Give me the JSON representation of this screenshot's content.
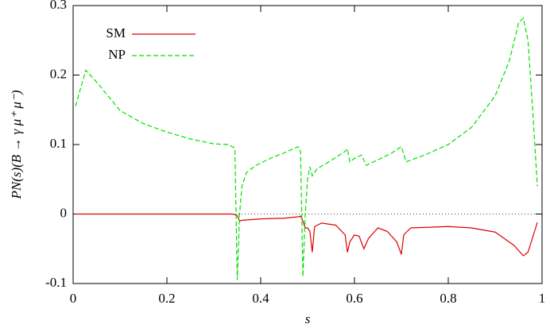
{
  "chart_data": {
    "type": "line",
    "x_label": "s",
    "y_label": "PN(s)(B → γ μ⁺ μ⁻)",
    "xlim": [
      0,
      1
    ],
    "xticks": [
      0,
      0.2,
      0.4,
      0.6,
      0.8,
      1
    ],
    "ylim": [
      -0.1,
      0.3
    ],
    "yticks": [
      -0.1,
      0,
      0.1,
      0.2,
      0.3
    ],
    "zero_line": true,
    "legend": "top-left",
    "series": [
      {
        "name": "SM",
        "color": "#e00000",
        "dash": false,
        "x": [
          0.005,
          0.34,
          0.35,
          0.355,
          0.36,
          0.4,
          0.45,
          0.48,
          0.485,
          0.49,
          0.495,
          0.5,
          0.505,
          0.51,
          0.515,
          0.53,
          0.56,
          0.58,
          0.585,
          0.59,
          0.6,
          0.61,
          0.62,
          0.63,
          0.65,
          0.67,
          0.69,
          0.7,
          0.705,
          0.72,
          0.8,
          0.85,
          0.9,
          0.94,
          0.96,
          0.97,
          0.99
        ],
        "values": [
          0,
          0,
          -0.002,
          -0.01,
          -0.009,
          -0.007,
          -0.006,
          -0.004,
          -0.003,
          -0.01,
          -0.02,
          -0.02,
          -0.025,
          -0.055,
          -0.018,
          -0.013,
          -0.016,
          -0.03,
          -0.055,
          -0.04,
          -0.03,
          -0.032,
          -0.05,
          -0.035,
          -0.02,
          -0.025,
          -0.04,
          -0.058,
          -0.03,
          -0.02,
          -0.018,
          -0.02,
          -0.026,
          -0.045,
          -0.06,
          -0.055,
          -0.012
        ]
      },
      {
        "name": "NP",
        "color": "#00e000",
        "dash": true,
        "x": [
          0.005,
          0.027,
          0.05,
          0.1,
          0.15,
          0.2,
          0.25,
          0.3,
          0.33,
          0.345,
          0.35,
          0.355,
          0.36,
          0.37,
          0.39,
          0.42,
          0.45,
          0.48,
          0.485,
          0.49,
          0.495,
          0.5,
          0.505,
          0.51,
          0.52,
          0.55,
          0.58,
          0.585,
          0.59,
          0.6,
          0.615,
          0.625,
          0.65,
          0.68,
          0.7,
          0.71,
          0.75,
          0.8,
          0.85,
          0.9,
          0.93,
          0.95,
          0.96,
          0.97,
          0.98,
          0.99
        ],
        "values": [
          0.155,
          0.207,
          0.19,
          0.149,
          0.13,
          0.118,
          0.108,
          0.101,
          0.1,
          0.095,
          -0.095,
          0.0,
          0.04,
          0.06,
          0.07,
          0.08,
          0.088,
          0.097,
          0.09,
          -0.09,
          0.0,
          0.05,
          0.068,
          0.055,
          0.065,
          0.077,
          0.09,
          0.094,
          0.075,
          0.08,
          0.085,
          0.07,
          0.078,
          0.088,
          0.097,
          0.075,
          0.085,
          0.1,
          0.125,
          0.17,
          0.22,
          0.275,
          0.282,
          0.25,
          0.15,
          0.04
        ]
      }
    ]
  }
}
